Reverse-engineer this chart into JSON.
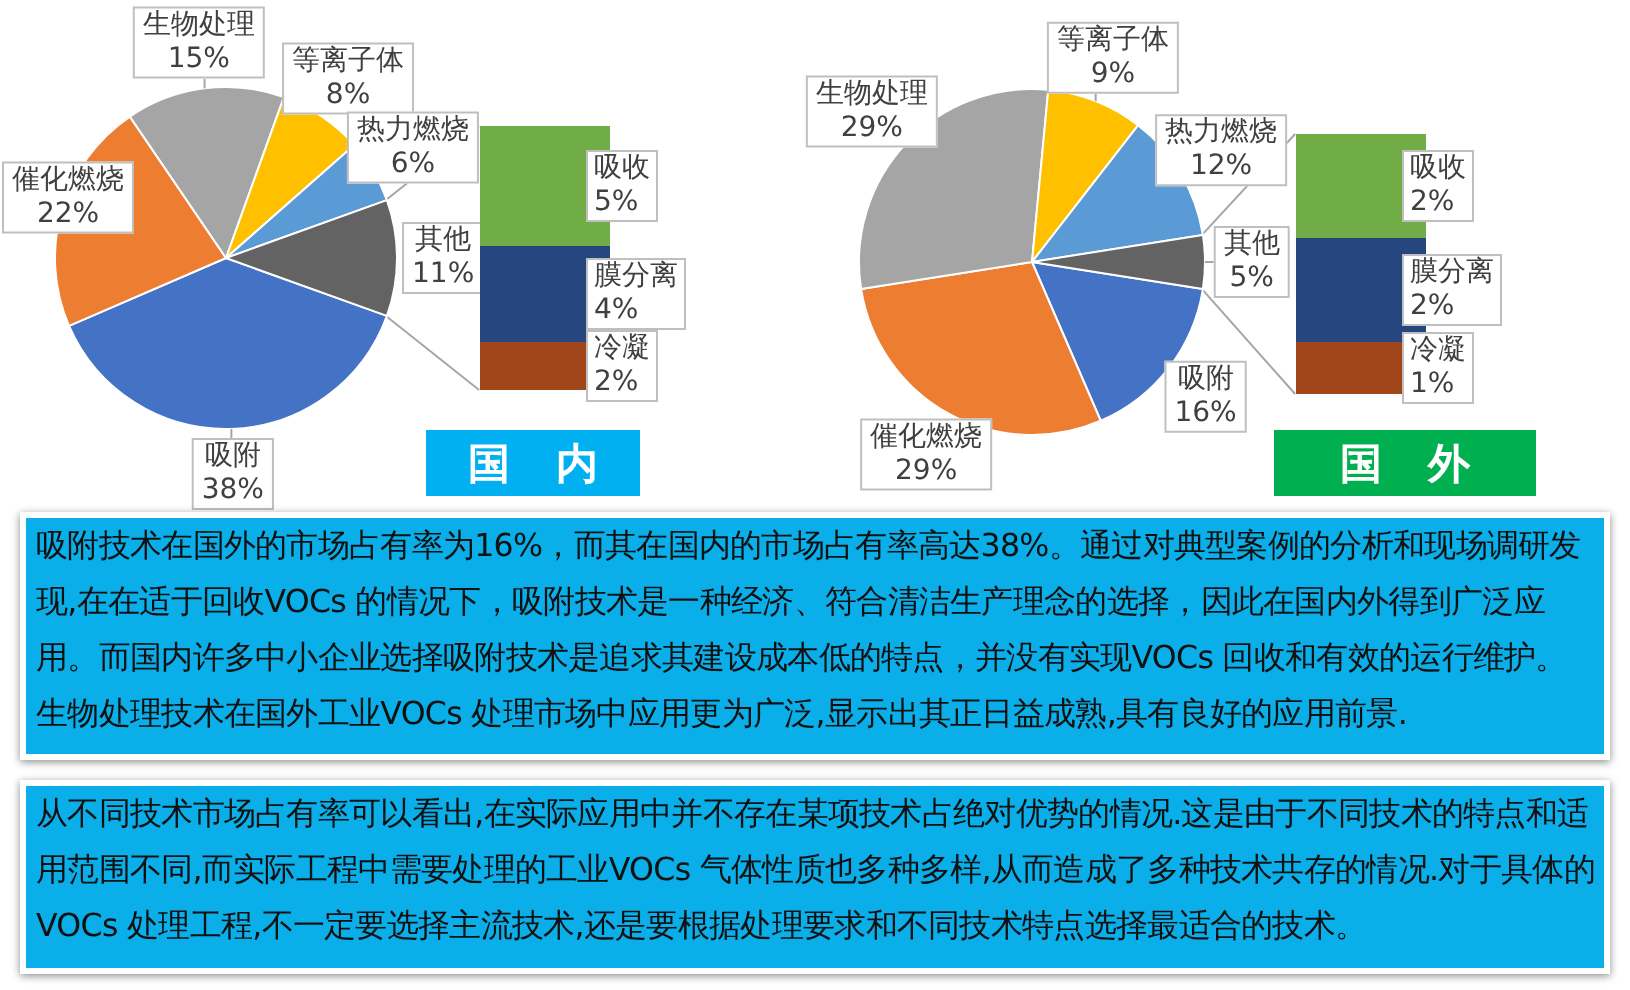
{
  "chart_data": [
    {
      "type": "pie",
      "categories": [
        "吸附",
        "催化燃烧",
        "生物处理",
        "等离子体",
        "热力燃烧",
        "其他"
      ],
      "values": [
        38,
        22,
        15,
        8,
        6,
        11
      ],
      "colors": [
        "#4472c4",
        "#ed7d31",
        "#a5a5a5",
        "#ffc000",
        "#5b9bd5",
        "#636363"
      ],
      "value_labels": [
        "38%",
        "22%",
        "15%",
        "8%",
        "6%",
        "11%"
      ]
    },
    {
      "type": "bar",
      "title": "国 内",
      "stacked": true,
      "categories": [
        null
      ],
      "series": [
        {
          "name": "冷凝",
          "color": "#a0461a",
          "values": [
            2
          ],
          "value_labels": [
            "2%"
          ]
        },
        {
          "name": "膜分离",
          "color": "#26467f",
          "values": [
            4
          ],
          "value_labels": [
            "4%"
          ]
        },
        {
          "name": "吸收",
          "color": "#70ad47",
          "values": [
            5
          ],
          "value_labels": [
            "5%"
          ]
        }
      ],
      "tick_labels": false
    },
    {
      "type": "pie",
      "categories": [
        "吸附",
        "催化燃烧",
        "生物处理",
        "等离子体",
        "热力燃烧",
        "其他"
      ],
      "values": [
        16,
        29,
        29,
        9,
        12,
        5
      ],
      "colors": [
        "#4472c4",
        "#ed7d31",
        "#a5a5a5",
        "#ffc000",
        "#5b9bd5",
        "#636363"
      ],
      "value_labels": [
        "16%",
        "29%",
        "29%",
        "9%",
        "12%",
        "5%"
      ]
    },
    {
      "type": "bar",
      "title": "国 外",
      "stacked": true,
      "categories": [
        null
      ],
      "series": [
        {
          "name": "冷凝",
          "color": "#a0461a",
          "values": [
            1
          ],
          "value_labels": [
            "1%"
          ]
        },
        {
          "name": "膜分离",
          "color": "#26467f",
          "values": [
            2
          ],
          "value_labels": [
            "2%"
          ]
        },
        {
          "name": "吸收",
          "color": "#70ad47",
          "values": [
            2
          ],
          "value_labels": [
            "2%"
          ]
        }
      ],
      "tick_labels": false
    },
    {
      "type": "other",
      "annotations": [
        "吸附技术在国外的市场占有率为16%，而其在国内的市场占有率高达38%。通过对典型案例的分析和现场调研发现,在在适于回收VOCs 的情况下，吸附技术是一种经济、符合清洁生产理念的选择，因此在国内外得到广泛应用。而国内许多中小企业选择吸附技术是追求其建设成本低的特点，并没有实现VOCs 回收和有效的运行维护。生物处理技术在国外工业VOCs 处理市场中应用更为广泛,显示出其正日益成熟,具有良好的应用前景.",
        "从不同技术市场占有率可以看出,在实际应用中并不存在某项技术占绝对优势的情况.这是由于不同技术的特点和适用范围不同,而实际工程中需要处理的工业VOCs 气体性质也多种多样,从而造成了多种技术共存的情况.对于具体的VOCs 处理工程,不一定要选择主流技术,还是要根据处理要求和不同技术特点选择最适合的技术。"
      ]
    }
  ]
}
